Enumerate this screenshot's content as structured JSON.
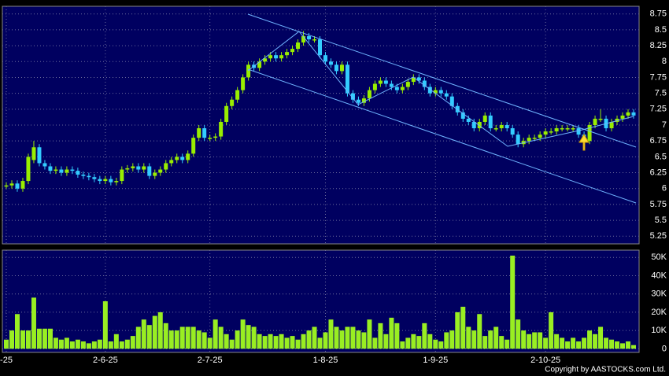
{
  "chart_data": [
    {
      "type": "candlestick",
      "up_color": "#99ee00",
      "down_color": "#33ccff",
      "grid": true,
      "ylim": [
        5.13,
        8.87
      ],
      "yticks": [
        5.25,
        5.5,
        5.75,
        6,
        6.25,
        6.5,
        6.75,
        7,
        7.25,
        7.5,
        7.75,
        8,
        8.25,
        8.5,
        8.75
      ],
      "open": [
        6.05,
        6.05,
        6.08,
        6.0,
        6.12,
        6.45,
        6.65,
        6.4,
        6.35,
        6.28,
        6.3,
        6.25,
        6.3,
        6.28,
        6.22,
        6.2,
        6.18,
        6.15,
        6.12,
        6.15,
        6.1,
        6.12,
        6.3,
        6.32,
        6.35,
        6.3,
        6.35,
        6.2,
        6.25,
        6.3,
        6.4,
        6.45,
        6.5,
        6.45,
        6.55,
        6.8,
        6.95,
        6.8,
        6.8,
        6.82,
        7.05,
        7.3,
        7.4,
        7.55,
        7.75,
        7.95,
        7.9,
        8.0,
        8.05,
        8.1,
        8.05,
        8.1,
        8.15,
        8.2,
        8.3,
        8.4,
        8.35,
        8.35,
        8.1,
        8.0,
        7.95,
        7.85,
        7.95,
        7.5,
        7.4,
        7.35,
        7.42,
        7.55,
        7.65,
        7.7,
        7.65,
        7.6,
        7.55,
        7.6,
        7.68,
        7.75,
        7.7,
        7.6,
        7.5,
        7.55,
        7.5,
        7.45,
        7.3,
        7.2,
        7.1,
        7.05,
        6.95,
        7.05,
        7.15,
        6.95,
        6.95,
        7.0,
        6.95,
        6.85,
        6.7,
        6.75,
        6.8,
        6.8,
        6.85,
        6.9,
        6.9,
        6.95,
        6.95,
        6.95,
        6.95,
        6.85,
        6.75,
        7.0,
        7.1,
        7.1,
        6.95,
        7.05,
        7.1,
        7.15,
        7.2
      ],
      "high": [
        6.1,
        6.13,
        6.13,
        6.17,
        6.55,
        6.75,
        6.7,
        6.45,
        6.4,
        6.35,
        6.35,
        6.35,
        6.35,
        6.33,
        6.27,
        6.25,
        6.23,
        6.2,
        6.2,
        6.2,
        6.17,
        6.35,
        6.37,
        6.4,
        6.4,
        6.4,
        6.4,
        6.3,
        6.35,
        6.45,
        6.5,
        6.55,
        6.55,
        6.6,
        6.85,
        7.0,
        7.0,
        6.85,
        6.87,
        7.1,
        7.35,
        7.45,
        7.6,
        7.8,
        8.0,
        8.0,
        8.05,
        8.1,
        8.15,
        8.15,
        8.15,
        8.2,
        8.25,
        8.35,
        8.48,
        8.45,
        8.4,
        8.4,
        8.15,
        8.05,
        8.0,
        8.0,
        8.0,
        7.55,
        7.45,
        7.47,
        7.6,
        7.7,
        7.75,
        7.75,
        7.7,
        7.65,
        7.65,
        7.73,
        7.8,
        7.8,
        7.75,
        7.65,
        7.6,
        7.6,
        7.55,
        7.5,
        7.35,
        7.25,
        7.15,
        7.1,
        7.1,
        7.2,
        7.2,
        7.0,
        7.05,
        7.05,
        7.0,
        6.9,
        6.8,
        6.85,
        6.85,
        6.9,
        6.95,
        6.95,
        7.0,
        7.0,
        7.0,
        7.0,
        7.0,
        6.9,
        7.05,
        7.15,
        7.25,
        7.15,
        7.1,
        7.15,
        7.2,
        7.25,
        7.25
      ],
      "low": [
        6.0,
        6.0,
        5.95,
        5.95,
        6.07,
        6.4,
        6.35,
        6.3,
        6.23,
        6.23,
        6.2,
        6.2,
        6.23,
        6.17,
        6.15,
        6.13,
        6.1,
        6.07,
        6.07,
        6.05,
        6.05,
        6.07,
        6.25,
        6.27,
        6.25,
        6.25,
        6.15,
        6.15,
        6.2,
        6.25,
        6.35,
        6.4,
        6.4,
        6.4,
        6.5,
        6.75,
        6.75,
        6.75,
        6.75,
        6.77,
        7.0,
        7.25,
        7.35,
        7.5,
        7.7,
        7.85,
        7.85,
        7.95,
        8.0,
        8.0,
        8.0,
        8.05,
        8.1,
        8.15,
        8.25,
        8.3,
        8.3,
        8.05,
        7.95,
        7.9,
        7.8,
        7.8,
        7.45,
        7.35,
        7.3,
        7.3,
        7.37,
        7.5,
        7.6,
        7.6,
        7.55,
        7.5,
        7.5,
        7.55,
        7.63,
        7.65,
        7.55,
        7.45,
        7.45,
        7.45,
        7.4,
        7.25,
        7.15,
        7.05,
        7.0,
        6.9,
        6.9,
        7.0,
        6.9,
        6.9,
        6.9,
        6.9,
        6.8,
        6.65,
        6.65,
        6.7,
        6.75,
        6.75,
        6.8,
        6.85,
        6.85,
        6.9,
        6.9,
        6.9,
        6.8,
        6.7,
        6.7,
        6.95,
        7.05,
        6.9,
        6.9,
        7.0,
        7.05,
        7.1,
        7.1
      ],
      "close": [
        6.05,
        6.08,
        6.0,
        6.12,
        6.5,
        6.65,
        6.4,
        6.35,
        6.28,
        6.3,
        6.25,
        6.3,
        6.28,
        6.22,
        6.2,
        6.18,
        6.15,
        6.12,
        6.15,
        6.1,
        6.12,
        6.3,
        6.32,
        6.35,
        6.3,
        6.35,
        6.2,
        6.25,
        6.3,
        6.4,
        6.45,
        6.5,
        6.45,
        6.55,
        6.8,
        6.95,
        6.8,
        6.8,
        6.82,
        7.05,
        7.3,
        7.4,
        7.55,
        7.75,
        7.95,
        7.9,
        8.0,
        8.05,
        8.1,
        8.05,
        8.1,
        8.15,
        8.2,
        8.3,
        8.4,
        8.35,
        8.35,
        8.1,
        8.0,
        7.95,
        7.85,
        7.95,
        7.5,
        7.4,
        7.35,
        7.42,
        7.55,
        7.65,
        7.7,
        7.65,
        7.6,
        7.55,
        7.6,
        7.68,
        7.75,
        7.7,
        7.6,
        7.5,
        7.55,
        7.5,
        7.45,
        7.3,
        7.2,
        7.1,
        7.05,
        6.95,
        7.05,
        7.15,
        6.95,
        6.95,
        7.0,
        6.95,
        6.85,
        6.7,
        6.75,
        6.8,
        6.8,
        6.85,
        6.9,
        6.9,
        6.95,
        6.95,
        6.95,
        6.95,
        6.85,
        6.75,
        7.0,
        7.1,
        7.1,
        6.95,
        7.05,
        7.1,
        7.15,
        7.2,
        7.15
      ]
    },
    {
      "type": "bar",
      "color": "#99ee22",
      "grid": true,
      "ylim": [
        -2000,
        54000
      ],
      "yticks": [
        {
          "value": 0,
          "label": "0"
        },
        {
          "value": 10000,
          "label": "10K"
        },
        {
          "value": 20000,
          "label": "20K"
        },
        {
          "value": 30000,
          "label": "30K"
        },
        {
          "value": 40000,
          "label": "40K"
        },
        {
          "value": 50000,
          "label": "50K"
        }
      ],
      "categories": [
        "-25",
        null,
        null,
        null,
        null,
        null,
        null,
        null,
        null,
        null,
        null,
        null,
        null,
        null,
        null,
        null,
        null,
        null,
        "2-6-25",
        null,
        null,
        null,
        null,
        null,
        null,
        null,
        null,
        null,
        null,
        null,
        null,
        null,
        null,
        null,
        null,
        null,
        null,
        "2-7-25",
        null,
        null,
        null,
        null,
        null,
        null,
        null,
        null,
        null,
        null,
        null,
        null,
        null,
        null,
        null,
        null,
        null,
        null,
        null,
        null,
        "1-8-25",
        null,
        null,
        null,
        null,
        null,
        null,
        null,
        null,
        null,
        null,
        null,
        null,
        null,
        null,
        null,
        null,
        null,
        null,
        null,
        "1-9-25",
        null,
        null,
        null,
        null,
        null,
        null,
        null,
        null,
        null,
        null,
        null,
        null,
        null,
        null,
        null,
        null,
        null,
        null,
        null,
        "2-10-25",
        null,
        null,
        null,
        null,
        null,
        null,
        null,
        null,
        null,
        null,
        null,
        null,
        null,
        null,
        null,
        null
      ],
      "values": [
        5000,
        10000,
        19000,
        10000,
        10000,
        28000,
        11000,
        11000,
        11000,
        6000,
        5000,
        6000,
        4000,
        5000,
        4000,
        3000,
        4000,
        5000,
        26000,
        4000,
        8000,
        4000,
        5000,
        7000,
        12000,
        16000,
        13000,
        18000,
        20000,
        14000,
        10000,
        10000,
        12000,
        12000,
        12000,
        10000,
        9000,
        6000,
        16000,
        12000,
        8000,
        5000,
        10000,
        16000,
        13000,
        12000,
        8000,
        7000,
        8000,
        7000,
        8000,
        6000,
        7000,
        5000,
        8000,
        10000,
        12000,
        6000,
        9000,
        16000,
        12000,
        10000,
        12000,
        12000,
        10000,
        9000,
        16000,
        6000,
        14000,
        8000,
        17000,
        14000,
        4000,
        6000,
        8000,
        7000,
        14000,
        8000,
        5000,
        4000,
        9000,
        10000,
        20000,
        23000,
        12000,
        10000,
        19000,
        7000,
        10000,
        12000,
        7000,
        5000,
        51000,
        16000,
        10000,
        8000,
        9000,
        9000,
        6000,
        20000,
        8000,
        6000,
        4000,
        6000,
        4000,
        6000,
        10000,
        8000,
        12000,
        6000,
        5000,
        4000,
        3000,
        4000,
        2000
      ]
    }
  ],
  "copyright": "Copyright by AASTOCKS.com Ltd."
}
